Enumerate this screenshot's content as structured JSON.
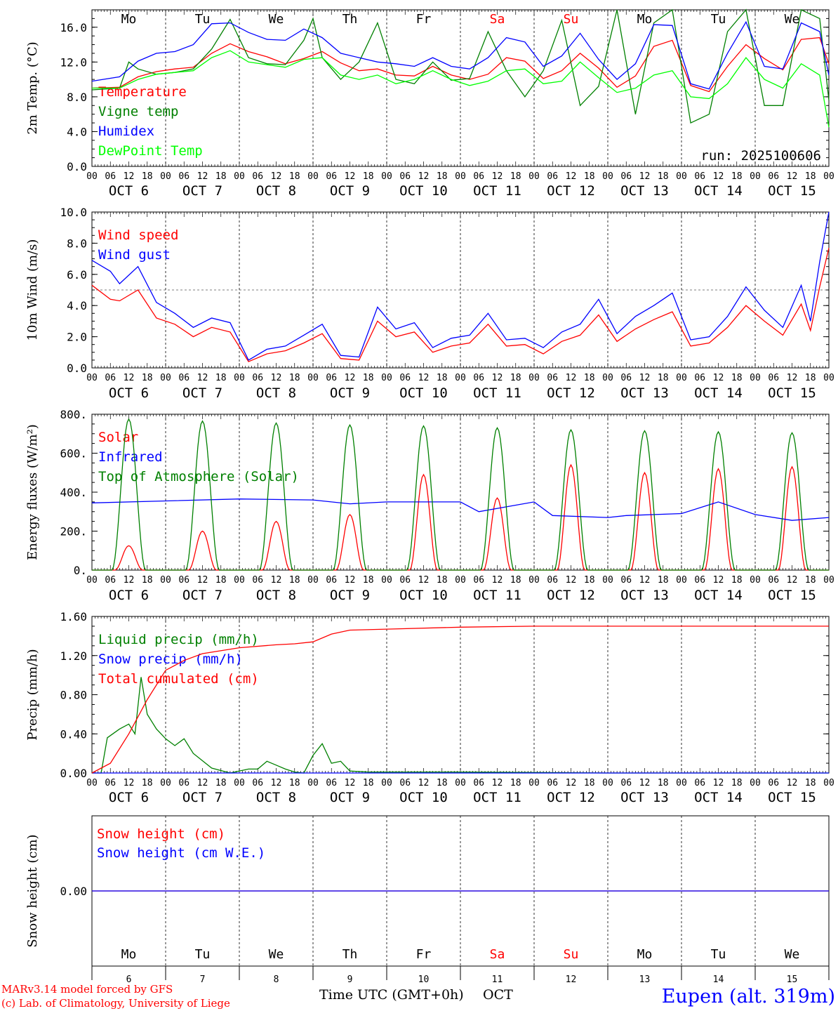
{
  "colors": {
    "red": "#ff0000",
    "green": "#008000",
    "blue": "#0000ff",
    "lightgreen": "#00ff00",
    "weekend": "#ff0000"
  },
  "days": [
    "Mo",
    "Tu",
    "We",
    "Th",
    "Fr",
    "Sa",
    "Su",
    "Mo",
    "Tu",
    "We"
  ],
  "weekend_index": [
    5,
    6
  ],
  "dates": [
    "OCT  6",
    "OCT  7",
    "OCT  8",
    "OCT  9",
    "OCT 10",
    "OCT 11",
    "OCT 12",
    "OCT 13",
    "OCT 14",
    "OCT 15"
  ],
  "hour_ticks": [
    "00",
    "06",
    "12",
    "18"
  ],
  "last_tick": "00",
  "day_numbers": [
    "6",
    "7",
    "8",
    "9",
    "10",
    "11",
    "12",
    "13",
    "14",
    "15"
  ],
  "run_label": "run: 2025100606",
  "footer": {
    "model": "MARv3.14 model forced by GFS",
    "credit": "(c) Lab. of Climatology, University of Liege",
    "xlabel": "Time UTC (GMT+0h)",
    "month": "OCT",
    "station": "Eupen (alt. 319m)"
  },
  "chart_data": [
    {
      "type": "line",
      "title": "2m Temp",
      "ylabel": "2m Temp. (°C)",
      "ylim": [
        0,
        18
      ],
      "yticks": [
        "0.0",
        "4.0",
        "8.0",
        "12.0",
        "16.0"
      ],
      "ytick_values": [
        0,
        4,
        8,
        12,
        16
      ],
      "x_unit": "hours since OCT 6 00 UTC",
      "xlim": [
        0,
        240
      ],
      "series": [
        {
          "name": "Temperature",
          "color": "red",
          "x": [
            0,
            9,
            15,
            21,
            27,
            33,
            39,
            45,
            51,
            57,
            63,
            69,
            75,
            81,
            87,
            93,
            99,
            105,
            111,
            117,
            123,
            129,
            135,
            141,
            147,
            153,
            159,
            165,
            171,
            177,
            183,
            189,
            195,
            201,
            207,
            213,
            219,
            225,
            231,
            237,
            240
          ],
          "y": [
            9.0,
            9.1,
            10.3,
            10.9,
            11.2,
            11.4,
            13.0,
            14.1,
            13.2,
            12.6,
            11.8,
            12.4,
            13.2,
            11.9,
            11.0,
            11.2,
            10.5,
            10.4,
            11.5,
            10.5,
            10.0,
            10.6,
            12.5,
            12.1,
            10.1,
            11.0,
            13.0,
            11.3,
            9.1,
            10.4,
            13.8,
            14.5,
            9.3,
            8.6,
            11.5,
            14.0,
            12.4,
            11.1,
            14.6,
            14.8,
            11.8
          ]
        },
        {
          "name": "Vigne temp",
          "color": "green",
          "x": [
            0,
            9,
            12,
            15,
            21,
            27,
            33,
            39,
            45,
            51,
            57,
            63,
            69,
            72,
            75,
            81,
            87,
            93,
            99,
            105,
            111,
            117,
            123,
            129,
            135,
            141,
            147,
            153,
            159,
            165,
            171,
            177,
            183,
            189,
            195,
            201,
            207,
            213,
            219,
            225,
            231,
            237,
            240
          ],
          "y": [
            8.8,
            9.0,
            12.0,
            11.2,
            10.6,
            10.8,
            11.2,
            13.5,
            16.9,
            12.5,
            11.8,
            11.7,
            14.5,
            17.0,
            12.5,
            10.0,
            12.0,
            16.5,
            10.0,
            9.5,
            12.0,
            9.9,
            10.1,
            15.5,
            11.0,
            8.0,
            11.0,
            16.8,
            7.0,
            9.2,
            18.0,
            6.0,
            16.5,
            18.0,
            5.0,
            6.0,
            15.5,
            18.0,
            7.0,
            7.0,
            18.0,
            17.0,
            7.6
          ]
        },
        {
          "name": "Humidex",
          "color": "blue",
          "x": [
            0,
            9,
            15,
            21,
            27,
            33,
            39,
            45,
            51,
            57,
            63,
            69,
            75,
            81,
            87,
            93,
            99,
            105,
            111,
            117,
            123,
            129,
            135,
            141,
            147,
            153,
            159,
            165,
            171,
            177,
            183,
            189,
            195,
            201,
            207,
            213,
            219,
            225,
            231,
            237,
            240
          ],
          "y": [
            9.8,
            10.3,
            12.1,
            13.0,
            13.2,
            14.0,
            16.4,
            16.5,
            15.4,
            14.6,
            14.5,
            15.8,
            14.8,
            13.0,
            12.5,
            12.0,
            11.8,
            11.5,
            12.5,
            11.5,
            11.2,
            12.5,
            14.8,
            14.3,
            11.5,
            12.7,
            15.3,
            12.3,
            10.0,
            11.8,
            16.3,
            16.2,
            9.5,
            8.9,
            13.0,
            16.6,
            11.5,
            11.2,
            16.5,
            15.5,
            10.5
          ]
        },
        {
          "name": "DewPoint Temp",
          "color": "lightgreen",
          "x": [
            0,
            9,
            15,
            21,
            27,
            33,
            39,
            45,
            51,
            57,
            63,
            69,
            75,
            81,
            87,
            93,
            99,
            105,
            111,
            117,
            123,
            129,
            135,
            141,
            147,
            153,
            159,
            165,
            171,
            177,
            183,
            189,
            195,
            201,
            207,
            213,
            219,
            225,
            231,
            237,
            240
          ],
          "y": [
            9.0,
            9.0,
            10.0,
            10.6,
            10.8,
            11.0,
            12.5,
            13.3,
            12.0,
            11.7,
            11.4,
            12.3,
            12.5,
            10.5,
            10.0,
            10.5,
            9.5,
            10.0,
            11.0,
            10.0,
            9.3,
            9.8,
            11.0,
            11.2,
            9.5,
            9.8,
            12.0,
            10.2,
            8.5,
            9.0,
            10.5,
            11.0,
            8.0,
            7.8,
            9.5,
            12.5,
            10.0,
            9.0,
            11.8,
            10.5,
            4.5
          ]
        }
      ]
    },
    {
      "type": "line",
      "title": "10m Wind",
      "ylabel": "10m Wind (m/s)",
      "ylim": [
        0,
        10
      ],
      "yticks": [
        "0.0",
        "2.0",
        "4.0",
        "6.0",
        "8.0",
        "10.0"
      ],
      "ytick_values": [
        0,
        2,
        4,
        6,
        8,
        10
      ],
      "x_unit": "hours since OCT 6 00 UTC",
      "xlim": [
        0,
        240
      ],
      "reference_line": 5.0,
      "series": [
        {
          "name": "Wind speed",
          "color": "red",
          "x": [
            0,
            6,
            9,
            15,
            21,
            27,
            33,
            39,
            45,
            51,
            57,
            63,
            69,
            75,
            81,
            87,
            93,
            99,
            105,
            111,
            117,
            123,
            129,
            135,
            141,
            147,
            153,
            159,
            165,
            171,
            177,
            183,
            189,
            195,
            201,
            207,
            213,
            219,
            225,
            231,
            234,
            237,
            240
          ],
          "y": [
            5.3,
            4.4,
            4.3,
            5.0,
            3.2,
            2.8,
            2.0,
            2.6,
            2.3,
            0.4,
            0.9,
            1.1,
            1.6,
            2.2,
            0.6,
            0.5,
            3.0,
            2.0,
            2.3,
            1.0,
            1.4,
            1.6,
            2.8,
            1.4,
            1.5,
            0.9,
            1.7,
            2.1,
            3.4,
            1.7,
            2.5,
            3.1,
            3.6,
            1.4,
            1.6,
            2.6,
            4.0,
            3.0,
            2.1,
            4.1,
            2.4,
            5.2,
            7.7
          ]
        },
        {
          "name": "Wind gust",
          "color": "blue",
          "x": [
            0,
            6,
            9,
            15,
            21,
            27,
            33,
            39,
            45,
            51,
            57,
            63,
            69,
            75,
            81,
            87,
            93,
            99,
            105,
            111,
            117,
            123,
            129,
            135,
            141,
            147,
            153,
            159,
            165,
            171,
            177,
            183,
            189,
            195,
            201,
            207,
            213,
            219,
            225,
            231,
            234,
            237,
            240
          ],
          "y": [
            6.9,
            6.2,
            5.4,
            6.5,
            4.2,
            3.5,
            2.6,
            3.2,
            2.9,
            0.5,
            1.2,
            1.4,
            2.1,
            2.8,
            0.8,
            0.7,
            3.9,
            2.5,
            2.9,
            1.3,
            1.9,
            2.1,
            3.5,
            1.8,
            1.9,
            1.3,
            2.3,
            2.8,
            4.4,
            2.2,
            3.3,
            4.0,
            4.8,
            1.8,
            2.0,
            3.3,
            5.2,
            3.7,
            2.6,
            5.3,
            3.0,
            6.8,
            10.0
          ]
        }
      ]
    },
    {
      "type": "line",
      "title": "Energy fluxes",
      "ylabel": "Energy fluxes (W/m²)",
      "ylim": [
        0,
        800
      ],
      "yticks": [
        "0.",
        "200.",
        "400.",
        "600.",
        "800."
      ],
      "ytick_values": [
        0,
        200,
        400,
        600,
        800
      ],
      "x_unit": "hours since OCT 6 00 UTC",
      "xlim": [
        0,
        240
      ],
      "series": [
        {
          "name": "Solar",
          "color": "red",
          "peak_hour": 12,
          "daily_peaks": [
            125,
            200,
            250,
            285,
            490,
            370,
            540,
            500,
            520,
            530
          ]
        },
        {
          "name": "Infrared",
          "color": "blue",
          "x": [
            0,
            24,
            48,
            72,
            84,
            96,
            120,
            126,
            144,
            150,
            168,
            174,
            192,
            204,
            216,
            228,
            240
          ],
          "y": [
            345,
            355,
            365,
            360,
            340,
            350,
            350,
            300,
            350,
            280,
            270,
            280,
            290,
            350,
            285,
            255,
            270
          ]
        },
        {
          "name": "Top of Atmosphere (Solar)",
          "color": "green",
          "peak_hour": 12,
          "daily_peaks": [
            775,
            765,
            755,
            745,
            740,
            730,
            720,
            715,
            710,
            705
          ]
        }
      ]
    },
    {
      "type": "line",
      "title": "Precip",
      "ylabel": "Precip (mm/h)",
      "ylim": [
        0,
        1.6
      ],
      "yticks": [
        "0.00",
        "0.40",
        "0.80",
        "1.20",
        "1.60"
      ],
      "ytick_values": [
        0,
        0.4,
        0.8,
        1.2,
        1.6
      ],
      "x_unit": "hours since OCT 6 00 UTC",
      "xlim": [
        0,
        240
      ],
      "series": [
        {
          "name": "Liquid precip (mm/h)",
          "color": "green",
          "x": [
            0,
            3,
            5,
            9,
            12,
            14,
            16,
            18,
            21,
            24,
            27,
            30,
            33,
            39,
            45,
            51,
            54,
            57,
            60,
            63,
            66,
            69,
            72,
            75,
            78,
            81,
            84,
            90,
            96,
            120,
            144,
            168,
            240
          ],
          "y": [
            0,
            0,
            0.36,
            0.45,
            0.5,
            0.4,
            0.98,
            0.6,
            0.45,
            0.35,
            0.28,
            0.35,
            0.2,
            0.05,
            0,
            0.04,
            0.04,
            0.12,
            0.08,
            0.04,
            0.01,
            0.0,
            0.18,
            0.3,
            0.1,
            0.12,
            0.02,
            0.01,
            0.01,
            0.01,
            0.005,
            0,
            0
          ]
        },
        {
          "name": "Snow precip (mm/h)",
          "color": "blue",
          "x": [
            0,
            240
          ],
          "y": [
            0,
            0
          ]
        },
        {
          "name": "Total cumulated (cm)",
          "color": "red",
          "x": [
            0,
            6,
            12,
            18,
            24,
            30,
            36,
            48,
            60,
            66,
            72,
            78,
            84,
            96,
            120,
            144,
            168,
            240
          ],
          "y": [
            0,
            0.1,
            0.4,
            0.75,
            1.05,
            1.15,
            1.22,
            1.28,
            1.31,
            1.32,
            1.34,
            1.42,
            1.46,
            1.47,
            1.49,
            1.5,
            1.5,
            1.5
          ]
        }
      ]
    },
    {
      "type": "line",
      "title": "Snow height",
      "ylabel": "Snow height (cm)",
      "ylim": [
        -1,
        1
      ],
      "yticks": [
        "0.00"
      ],
      "ytick_values": [
        0
      ],
      "x_unit": "hours since OCT 6 00 UTC",
      "xlim": [
        0,
        240
      ],
      "series": [
        {
          "name": "Snow height (cm)",
          "color": "red",
          "x": [
            0,
            240
          ],
          "y": [
            0,
            0
          ]
        },
        {
          "name": "Snow height (cm W.E.)",
          "color": "blue",
          "x": [
            0,
            240
          ],
          "y": [
            0,
            0
          ]
        }
      ]
    }
  ]
}
